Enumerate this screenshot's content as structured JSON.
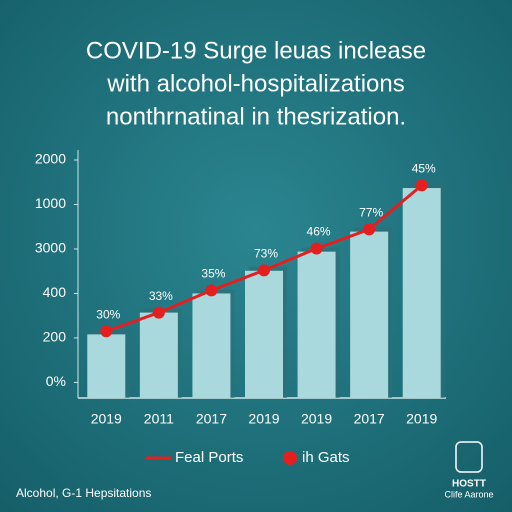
{
  "chart_data": {
    "type": "bar-line",
    "title_lines": [
      "COVID-19 Surge leuas inclease",
      "with alcohol-hospitalizations",
      "nonthrnatinal in thesrization."
    ],
    "categories": [
      "2019",
      "2011",
      "2017",
      "2019",
      "2019",
      "2017",
      "2019"
    ],
    "series": [
      {
        "type": "bar",
        "color": "#a9d9dc",
        "values": [
          1.08,
          1.57,
          2.0,
          2.51,
          2.94,
          3.39,
          4.37
        ]
      },
      {
        "type": "line",
        "color": "#e3201f",
        "values": [
          1.15,
          1.57,
          2.07,
          2.52,
          3.01,
          3.44,
          4.43
        ]
      }
    ],
    "point_annotations": [
      "30%",
      "33%",
      "35%",
      "73%",
      "46%",
      "77%",
      "45%"
    ],
    "ylim": [
      -0.35,
      5
    ],
    "yticks": [
      {
        "value": 5,
        "label": "2000"
      },
      {
        "value": 4,
        "label": "1000"
      },
      {
        "value": 3,
        "label": "3000"
      },
      {
        "value": 2,
        "label": "400"
      },
      {
        "value": 1,
        "label": "200"
      },
      {
        "value": 0,
        "label": "0%"
      }
    ],
    "legend": [
      {
        "label": "Feal Ports",
        "marker": "line"
      },
      {
        "label": "ih Gats",
        "marker": "dot"
      }
    ],
    "footer": "Alcohol, G-1 Hepsitations",
    "logo": {
      "title": "HOSTT",
      "subtitle": "Clife Aarone"
    }
  }
}
